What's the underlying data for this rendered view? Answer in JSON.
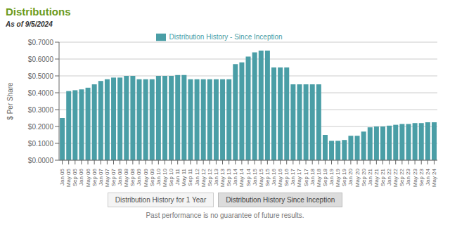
{
  "chart_data": {
    "type": "bar",
    "title": "Distributions",
    "subtitle": "As of 9/5/2024",
    "y_label": "$ Per Share",
    "annotations": [
      "Distribution History for 1 Year",
      "Distribution History Since Inception",
      "Past performance is no guarantee of future results."
    ],
    "categories": [
      "Jan 05",
      "May 05",
      "Sep 05",
      "Jan 06",
      "May 06",
      "Sep 06",
      "Jan 07",
      "May 07",
      "Sep 07",
      "Jan 08",
      "May 08",
      "Sep 08",
      "Jan 09",
      "May 09",
      "Sep 09",
      "Jan 10",
      "May 10",
      "Sep 10",
      "Jan 11",
      "May 11",
      "Sep 11",
      "Jan 12",
      "May 12",
      "Sep 12",
      "Jan 13",
      "May 13",
      "Sep 13",
      "Jan 14",
      "May 14",
      "Sep 14",
      "Jan 15",
      "May 15",
      "Sep 15",
      "Jan 16",
      "May 16",
      "Sep 16",
      "Jan 17",
      "May 17",
      "Sep 17",
      "Jan 18",
      "May 18",
      "Sep 18",
      "Jan 19",
      "May 19",
      "Sep 19",
      "Jan 20",
      "May 20",
      "Sep 20",
      "Jan 21",
      "May 21",
      "Sep 21",
      "Jan 22",
      "May 22",
      "Sep 22",
      "Jan 23",
      "May 23",
      "Sep 23",
      "Jan 24",
      "May 24"
    ],
    "series": [
      {
        "name": "Distribution History - Since Inception",
        "color": "#4a9ea6",
        "values": [
          0.25,
          0.41,
          0.415,
          0.42,
          0.43,
          0.45,
          0.47,
          0.48,
          0.49,
          0.49,
          0.5,
          0.5,
          0.48,
          0.48,
          0.48,
          0.5,
          0.5,
          0.5,
          0.505,
          0.505,
          0.48,
          0.48,
          0.48,
          0.48,
          0.48,
          0.48,
          0.48,
          0.57,
          0.58,
          0.615,
          0.64,
          0.65,
          0.65,
          0.55,
          0.55,
          0.55,
          0.45,
          0.45,
          0.45,
          0.45,
          0.45,
          0.15,
          0.115,
          0.115,
          0.12,
          0.145,
          0.145,
          0.17,
          0.195,
          0.2,
          0.2,
          0.205,
          0.21,
          0.215,
          0.215,
          0.22,
          0.22,
          0.225,
          0.225
        ]
      }
    ],
    "ylim": [
      0.0,
      0.7
    ],
    "yticks": [
      {
        "value": 0.0,
        "label": "$0.0000"
      },
      {
        "value": 0.1,
        "label": "$0.1000"
      },
      {
        "value": 0.2,
        "label": "$0.2000"
      },
      {
        "value": 0.3,
        "label": "$0.3000"
      },
      {
        "value": 0.4,
        "label": "$0.4000"
      },
      {
        "value": 0.5,
        "label": "$0.5000"
      },
      {
        "value": 0.6,
        "label": "$0.6000"
      },
      {
        "value": 0.7,
        "label": "$0.7000"
      }
    ],
    "grid": true,
    "legend": "top"
  }
}
